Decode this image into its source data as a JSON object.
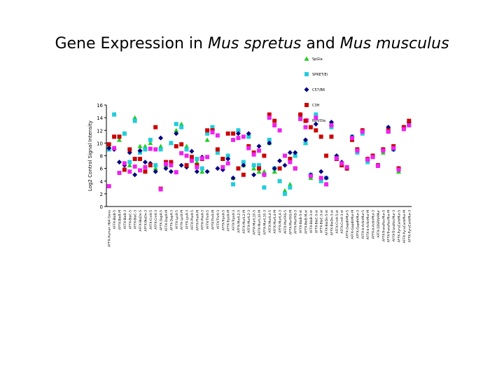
{
  "title_plain": "Gene Expression in ",
  "title_italic_1": "Mus spretus",
  "title_mid": " and ",
  "title_italic_2": "Mus musculus",
  "chart_data": {
    "type": "scatter",
    "title": "Gene Expression in Mus spretus and Mus musculus",
    "ylabel": "Log2 Control Signal Intensity",
    "xlabel": "",
    "ylim": [
      0,
      16
    ],
    "yticks": [
      0,
      2,
      4,
      6,
      8,
      10,
      12,
      14,
      16
    ],
    "grid": false,
    "legend_position": "top-right",
    "categories": [
      "AFFX-Human Hb4 Gene",
      "AFFX-BioB-5",
      "AFFX-BioB-M",
      "AFFX-BioB-3",
      "AFFX-BioC-5",
      "AFFX-BioC-3",
      "AFFX-BioDn-5",
      "AFFX-BioDn-3",
      "AFFX-CreX-5",
      "AFFX-CreX-3",
      "AFFX-DapX-5",
      "AFFX-DapX-M",
      "AFFX-DapX-3",
      "AFFX-LysX-5",
      "AFFX-LysX-M",
      "AFFX-LysX-3",
      "AFFX-PheX-5",
      "AFFX-PheX-M",
      "AFFX-PheX-3",
      "AFFX-ThrX-5",
      "AFFX-ThrX-M",
      "AFFX-ThrX-3",
      "AFFX-TrpnX-5",
      "AFFX-TrpnX-M",
      "AFFX-TrpnX-3",
      "AFFX-MurIL2-5",
      "AFFX-MurIL2-M",
      "AFFX-MurIL2-3",
      "AFFX-MurIL10-5",
      "AFFX-MurIL10-M",
      "AFFX-MurIL10-3",
      "AFFX-MurIL4-5",
      "AFFX-MurIL4-M",
      "AFFX-MurIL4-3",
      "AFFX-MurFAS-5",
      "AFFX-MurFAS-M",
      "AFFX-MurFAS-3",
      "AFFX-BioB-5-st",
      "AFFX-BioB-M-st",
      "AFFX-BioB-3-st",
      "AFFX-BioC-5-st",
      "AFFX-BioC-3-st",
      "AFFX-BioDn-5-st",
      "AFFX-BioDn-3-st",
      "AFFX-CreX-5-st",
      "AFFX-CreX-3-st",
      "AFFX-GapdhMur-5",
      "AFFX-GapdhMur-M",
      "AFFX-GapdhMur-3",
      "AFFX-b-ActinMur-5",
      "AFFX-b-ActinMur-M",
      "AFFX-b-ActinMur-3",
      "AFFX-18SRNAMur",
      "AFFX-TransRecMur-5",
      "AFFX-TransRecMur-M",
      "AFFX-TransRecMur-3",
      "AFFX-PyruCarbMur-5",
      "AFFX-PyruCarbMur-M",
      "AFFX-PyruCarbMur-3"
    ],
    "series": [
      {
        "name": "SpGla",
        "color": "#22cc22",
        "marker": "triangle",
        "values": [
          9.5,
          14.5,
          10.5,
          11.5,
          6.5,
          14.0,
          9.5,
          9.5,
          10.0,
          6.0,
          9.5,
          6.5,
          10.0,
          12.0,
          13.0,
          9.5,
          7.5,
          7.0,
          5.5,
          10.5,
          12.5,
          8.5,
          7.5,
          8.0,
          4.5,
          12.0,
          6.5,
          11.5,
          6.0,
          5.5,
          5.5,
          10.0,
          5.5,
          4.0,
          2.5,
          3.5,
          8.0,
          14.0,
          10.0,
          4.5,
          14.0,
          4.0,
          3.5,
          13.0,
          8.0,
          6.5,
          6.0,
          11.0,
          9.0,
          12.0,
          7.5,
          8.0,
          6.5,
          8.5,
          12.0,
          9.5,
          5.5,
          12.5,
          13.0
        ]
      },
      {
        "name": "SPRET/Ei",
        "color": "#22ccdd",
        "marker": "square",
        "values": [
          9.0,
          14.5,
          11.0,
          11.5,
          7.0,
          13.5,
          8.5,
          9.0,
          10.5,
          6.5,
          9.0,
          7.0,
          10.0,
          13.0,
          12.5,
          9.0,
          7.5,
          7.5,
          6.0,
          11.5,
          12.5,
          8.5,
          7.5,
          8.0,
          3.5,
          12.0,
          7.0,
          11.0,
          6.5,
          6.5,
          3.0,
          10.5,
          6.0,
          4.0,
          2.0,
          3.0,
          8.0,
          14.0,
          10.0,
          5.0,
          14.5,
          4.0,
          4.5,
          12.5,
          7.5,
          6.5,
          6.0,
          11.0,
          8.5,
          11.5,
          7.0,
          8.0,
          6.5,
          9.0,
          12.0,
          9.0,
          6.0,
          12.5,
          13.0
        ]
      },
      {
        "name": "C57/B6",
        "color": "#000080",
        "marker": "diamond",
        "values": [
          9.2,
          9.0,
          7.0,
          6.5,
          8.5,
          5.0,
          8.8,
          7.0,
          6.8,
          5.5,
          10.8,
          6.0,
          5.5,
          11.5,
          6.5,
          6.2,
          8.7,
          5.5,
          7.8,
          5.5,
          12.0,
          6.0,
          5.8,
          7.5,
          4.5,
          11.5,
          6.5,
          11.5,
          5.0,
          9.5,
          5.0,
          10.0,
          6.0,
          7.2,
          6.5,
          8.5,
          8.5,
          14.5,
          10.5,
          5.0,
          13.0,
          5.5,
          4.5,
          13.3,
          8.0,
          7.0,
          6.0,
          11.0,
          9.0,
          12.0,
          7.5,
          8.0,
          6.5,
          9.0,
          12.5,
          9.0,
          6.0,
          12.5,
          13.3
        ]
      },
      {
        "name": "C3H",
        "color": "#cc0000",
        "marker": "square",
        "values": [
          9.8,
          11.0,
          11.0,
          5.8,
          9.0,
          7.5,
          7.5,
          5.5,
          6.5,
          12.5,
          2.8,
          7.0,
          7.0,
          9.5,
          9.8,
          6.5,
          7.8,
          6.5,
          7.5,
          12.0,
          12.0,
          9.0,
          7.5,
          11.5,
          11.5,
          6.0,
          5.0,
          9.5,
          8.5,
          6.0,
          8.0,
          14.5,
          13.5,
          6.0,
          8.0,
          7.5,
          6.0,
          14.5,
          13.5,
          12.5,
          12.0,
          11.0,
          8.0,
          11.0,
          7.5,
          6.5,
          6.0,
          10.5,
          9.0,
          12.0,
          7.5,
          8.0,
          6.5,
          9.0,
          12.0,
          9.5,
          6.0,
          12.5,
          13.5
        ]
      },
      {
        "name": "NIH/Ola",
        "color": "#ee22ee",
        "marker": "square",
        "values": [
          3.2,
          9.2,
          5.3,
          6.8,
          5.5,
          6.3,
          5.7,
          6.2,
          9.1,
          9.0,
          2.7,
          6.7,
          6.5,
          5.4,
          8.4,
          8.0,
          7.2,
          6.2,
          7.6,
          7.8,
          11.7,
          11.2,
          6.2,
          6.8,
          10.5,
          10.8,
          11.0,
          9.2,
          8.2,
          8.8,
          5.0,
          14.0,
          12.8,
          12.0,
          8.0,
          7.0,
          6.0,
          13.8,
          12.5,
          4.8,
          14.0,
          4.5,
          3.5,
          12.8,
          7.6,
          6.8,
          6.2,
          10.8,
          8.8,
          11.8,
          7.4,
          7.8,
          6.4,
          8.8,
          11.8,
          9.2,
          5.8,
          12.2,
          12.8
        ]
      }
    ]
  }
}
